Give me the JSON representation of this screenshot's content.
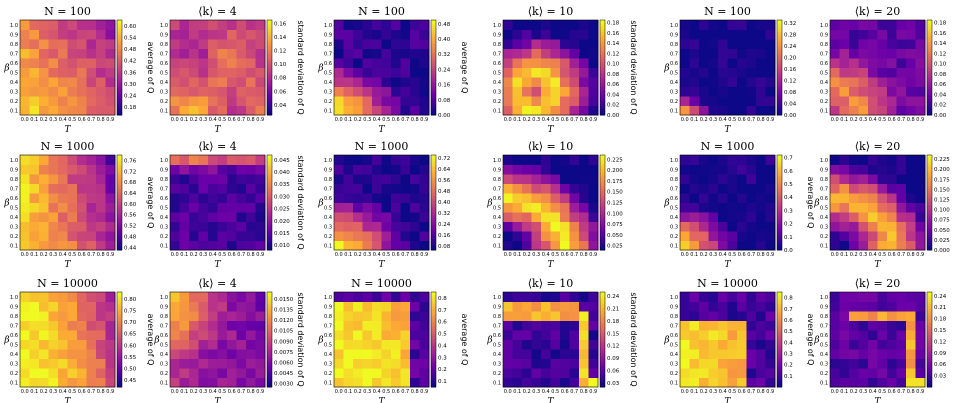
{
  "colors": {
    "colormap": "plasma",
    "colormap_stops": [
      "#0d0887",
      "#6a00a8",
      "#b12a90",
      "#e16462",
      "#fca636",
      "#f0f921"
    ]
  },
  "chart_data": [
    {
      "type": "heatmap",
      "title": "N = 100",
      "xlabel": "T",
      "ylabel": "β",
      "colorbar_label": "average of Q",
      "colorbar_ticks": [
        "0.18",
        "0.24",
        "0.30",
        "0.36",
        "0.42",
        "0.48",
        "0.54",
        "0.60"
      ],
      "clim": [
        0.14,
        0.63
      ],
      "x": [
        "0.0",
        "0.1",
        "0.2",
        "0.3",
        "0.4",
        "0.5",
        "0.6",
        "0.7",
        "0.8",
        "0.9"
      ],
      "y": [
        "0.1",
        "0.2",
        "0.3",
        "0.4",
        "0.5",
        "0.6",
        "0.7",
        "0.8",
        "0.9",
        "1.0"
      ]
    },
    {
      "type": "heatmap",
      "title": "⟨k⟩ = 4",
      "xlabel": "T",
      "ylabel": "",
      "colorbar_label": "standard deviation of Q",
      "colorbar_ticks": [
        "0.04",
        "0.06",
        "0.08",
        "0.10",
        "0.12",
        "0.14",
        "0.16"
      ],
      "clim": [
        0.025,
        0.165
      ],
      "x": [
        "0.0",
        "0.1",
        "0.2",
        "0.3",
        "0.4",
        "0.5",
        "0.6",
        "0.7",
        "0.8",
        "0.9"
      ],
      "y": [
        "0.1",
        "0.2",
        "0.3",
        "0.4",
        "0.5",
        "0.6",
        "0.7",
        "0.8",
        "0.9",
        "1.0"
      ]
    },
    {
      "type": "heatmap",
      "title": "N = 100",
      "xlabel": "T",
      "ylabel": "β",
      "colorbar_label": "average of Q",
      "colorbar_ticks": [
        "0.00",
        "0.08",
        "0.16",
        "0.24",
        "0.32",
        "0.40",
        "0.48"
      ],
      "clim": [
        0.0,
        0.5
      ],
      "x": [
        "0.0",
        "0.1",
        "0.2",
        "0.3",
        "0.4",
        "0.5",
        "0.6",
        "0.7",
        "0.8",
        "0.9"
      ],
      "y": [
        "0.1",
        "0.2",
        "0.3",
        "0.4",
        "0.5",
        "0.6",
        "0.7",
        "0.8",
        "0.9",
        "1.0"
      ]
    },
    {
      "type": "heatmap",
      "title": "⟨k⟩ = 10",
      "xlabel": "T",
      "ylabel": "",
      "colorbar_label": "standard deviation of Q",
      "colorbar_ticks": [
        "0.00",
        "0.02",
        "0.04",
        "0.06",
        "0.08",
        "0.10",
        "0.12",
        "0.14",
        "0.16",
        "0.18"
      ],
      "clim": [
        0.0,
        0.185
      ],
      "x": [
        "0.0",
        "0.1",
        "0.2",
        "0.3",
        "0.4",
        "0.5",
        "0.6",
        "0.7",
        "0.8",
        "0.9"
      ],
      "y": [
        "0.1",
        "0.2",
        "0.3",
        "0.4",
        "0.5",
        "0.6",
        "0.7",
        "0.8",
        "0.9",
        "1.0"
      ]
    },
    {
      "type": "heatmap",
      "title": "N = 100",
      "xlabel": "T",
      "ylabel": "β",
      "colorbar_label": "",
      "colorbar_ticks": [
        "0.00",
        "0.04",
        "0.08",
        "0.12",
        "0.16",
        "0.20",
        "0.24",
        "0.28",
        "0.32"
      ],
      "clim": [
        0.0,
        0.33
      ],
      "x": [
        "0.0",
        "0.1",
        "0.2",
        "0.3",
        "0.4",
        "0.5",
        "0.6",
        "0.7",
        "0.8",
        "0.9"
      ],
      "y": [
        "0.1",
        "0.2",
        "0.3",
        "0.4",
        "0.5",
        "0.6",
        "0.7",
        "0.8",
        "0.9",
        "1.0"
      ]
    },
    {
      "type": "heatmap",
      "title": "⟨k⟩ = 20",
      "xlabel": "",
      "ylabel": "",
      "colorbar_label": "standard deviation of Q",
      "colorbar_ticks": [
        "0.00",
        "0.02",
        "0.04",
        "0.06",
        "0.08",
        "0.10",
        "0.12",
        "0.14",
        "0.16",
        "0.18"
      ],
      "clim": [
        0.0,
        0.185
      ],
      "x": [
        "0.0",
        "0.1",
        "0.2",
        "0.3",
        "0.4",
        "0.5",
        "0.6",
        "0.7",
        "0.8",
        "0.9"
      ],
      "y": [
        "0.1",
        "0.2",
        "0.3",
        "0.4",
        "0.5",
        "0.6",
        "0.7",
        "0.8",
        "0.9",
        "1.0"
      ]
    },
    {
      "type": "heatmap",
      "title": "N = 1000",
      "xlabel": "T",
      "ylabel": "β",
      "colorbar_label": "average of Q",
      "colorbar_ticks": [
        "0.44",
        "0.48",
        "0.52",
        "0.56",
        "0.60",
        "0.64",
        "0.68",
        "0.72",
        "0.76"
      ],
      "clim": [
        0.43,
        0.78
      ],
      "x": [
        "0.0",
        "0.1",
        "0.2",
        "0.3",
        "0.4",
        "0.5",
        "0.6",
        "0.7",
        "0.8",
        "0.9"
      ],
      "y": [
        "0.1",
        "0.2",
        "0.3",
        "0.4",
        "0.5",
        "0.6",
        "0.7",
        "0.8",
        "0.9",
        "1.0"
      ]
    },
    {
      "type": "heatmap",
      "title": "⟨k⟩ = 4",
      "xlabel": "T",
      "ylabel": "",
      "colorbar_label": "standard deviation of Q",
      "colorbar_ticks": [
        "0.010",
        "0.015",
        "0.020",
        "0.025",
        "0.030",
        "0.035",
        "0.040",
        "0.045"
      ],
      "clim": [
        0.008,
        0.047
      ],
      "x": [
        "0.0",
        "0.1",
        "0.2",
        "0.3",
        "0.4",
        "0.5",
        "0.6",
        "0.7",
        "0.8",
        "0.9"
      ],
      "y": [
        "0.1",
        "0.2",
        "0.3",
        "0.4",
        "0.5",
        "0.6",
        "0.7",
        "0.8",
        "0.9",
        "1.0"
      ]
    },
    {
      "type": "heatmap",
      "title": "N = 1000",
      "xlabel": "T",
      "ylabel": "β",
      "colorbar_label": "",
      "colorbar_ticks": [
        "0.08",
        "0.16",
        "0.24",
        "0.32",
        "0.40",
        "0.48",
        "0.56",
        "0.64",
        "0.72"
      ],
      "clim": [
        0.05,
        0.74
      ],
      "x": [
        "0.0",
        "0.1",
        "0.2",
        "0.3",
        "0.4",
        "0.5",
        "0.6",
        "0.7",
        "0.8",
        "0.9"
      ],
      "y": [
        "0.1",
        "0.2",
        "0.3",
        "0.4",
        "0.5",
        "0.6",
        "0.7",
        "0.8",
        "0.9",
        "1.0"
      ]
    },
    {
      "type": "heatmap",
      "title": "⟨k⟩ = 10",
      "xlabel": "T",
      "ylabel": "β",
      "colorbar_label": "",
      "colorbar_ticks": [
        "0.025",
        "0.050",
        "0.075",
        "0.100",
        "0.125",
        "0.150",
        "0.175",
        "0.200",
        "0.225"
      ],
      "clim": [
        0.015,
        0.235
      ],
      "x": [
        "0.0",
        "0.1",
        "0.2",
        "0.3",
        "0.4",
        "0.5",
        "0.6",
        "0.7",
        "0.8",
        "0.9"
      ],
      "y": [
        "0.1",
        "0.2",
        "0.3",
        "0.4",
        "0.5",
        "0.6",
        "0.7",
        "0.8",
        "0.9",
        "1.0"
      ]
    },
    {
      "type": "heatmap",
      "title": "N = 1000",
      "xlabel": "T",
      "ylabel": "β",
      "colorbar_label": "average of Q",
      "colorbar_ticks": [
        "0.0",
        "0.1",
        "0.2",
        "0.3",
        "0.4",
        "0.5",
        "0.6",
        "0.7"
      ],
      "clim": [
        0.0,
        0.72
      ],
      "x": [
        "0.0",
        "0.1",
        "0.2",
        "0.3",
        "0.4",
        "0.5",
        "0.6",
        "0.7",
        "0.8",
        "0.9"
      ],
      "y": [
        "0.1",
        "0.2",
        "0.3",
        "0.4",
        "0.5",
        "0.6",
        "0.7",
        "0.8",
        "0.9",
        "1.0"
      ]
    },
    {
      "type": "heatmap",
      "title": "⟨k⟩ = 20",
      "xlabel": "T",
      "ylabel": "β",
      "colorbar_label": "standard deviation of Q",
      "colorbar_ticks": [
        "0.000",
        "0.025",
        "0.050",
        "0.075",
        "0.100",
        "0.125",
        "0.150",
        "0.175",
        "0.200",
        "0.225"
      ],
      "clim": [
        0.0,
        0.235
      ],
      "x": [
        "0.0",
        "0.1",
        "0.2",
        "0.3",
        "0.4",
        "0.5",
        "0.6",
        "0.7",
        "0.8",
        "0.9"
      ],
      "y": [
        "0.1",
        "0.2",
        "0.3",
        "0.4",
        "0.5",
        "0.6",
        "0.7",
        "0.8",
        "0.9",
        "1.0"
      ]
    },
    {
      "type": "heatmap",
      "title": "N = 10000",
      "xlabel": "T",
      "ylabel": "β",
      "colorbar_label": "average of Q",
      "colorbar_ticks": [
        "0.45",
        "0.50",
        "0.55",
        "0.60",
        "0.65",
        "0.70",
        "0.75",
        "0.80"
      ],
      "clim": [
        0.42,
        0.83
      ],
      "x": [
        "0.0",
        "0.1",
        "0.2",
        "0.3",
        "0.4",
        "0.5",
        "0.6",
        "0.7",
        "0.8",
        "0.9"
      ],
      "y": [
        "0.1",
        "0.2",
        "0.3",
        "0.4",
        "0.5",
        "0.6",
        "0.7",
        "0.8",
        "0.9",
        "1.0"
      ]
    },
    {
      "type": "heatmap",
      "title": "⟨k⟩ = 4",
      "xlabel": "T",
      "ylabel": "β",
      "colorbar_label": "standard deviation of Q",
      "colorbar_ticks": [
        "0.0030",
        "0.0045",
        "0.0060",
        "0.0075",
        "0.0090",
        "0.0105",
        "0.0120",
        "0.0135",
        "0.0150"
      ],
      "clim": [
        0.0025,
        0.016
      ],
      "x": [
        "0.0",
        "0.1",
        "0.2",
        "0.3",
        "0.4",
        "0.5",
        "0.6",
        "0.7",
        "0.8",
        "0.9"
      ],
      "y": [
        "0.1",
        "0.2",
        "0.3",
        "0.4",
        "0.5",
        "0.6",
        "0.7",
        "0.8",
        "0.9",
        "1.0"
      ]
    },
    {
      "type": "heatmap",
      "title": "N = 10000",
      "xlabel": "T",
      "ylabel": "β",
      "colorbar_label": "average of Q",
      "colorbar_ticks": [
        "0.1",
        "0.2",
        "0.3",
        "0.4",
        "0.5",
        "0.6",
        "0.7",
        "0.8"
      ],
      "clim": [
        0.05,
        0.85
      ],
      "x": [
        "0.0",
        "0.1",
        "0.2",
        "0.3",
        "0.4",
        "0.5",
        "0.6",
        "0.7",
        "0.8",
        "0.9"
      ],
      "y": [
        "0.1",
        "0.2",
        "0.3",
        "0.4",
        "0.5",
        "0.6",
        "0.7",
        "0.8",
        "0.9",
        "1.0"
      ]
    },
    {
      "type": "heatmap",
      "title": "⟨k⟩ = 10",
      "xlabel": "T",
      "ylabel": "β",
      "colorbar_label": "standard deviation of Q",
      "colorbar_ticks": [
        "0.03",
        "0.06",
        "0.09",
        "0.12",
        "0.15",
        "0.18",
        "0.21",
        "0.24"
      ],
      "clim": [
        0.02,
        0.25
      ],
      "x": [
        "0.0",
        "0.1",
        "0.2",
        "0.3",
        "0.4",
        "0.5",
        "0.6",
        "0.7",
        "0.8",
        "0.9"
      ],
      "y": [
        "0.1",
        "0.2",
        "0.3",
        "0.4",
        "0.5",
        "0.6",
        "0.7",
        "0.8",
        "0.9",
        "1.0"
      ]
    },
    {
      "type": "heatmap",
      "title": "N = 10000",
      "xlabel": "T",
      "ylabel": "β",
      "colorbar_label": "average of Q",
      "colorbar_ticks": [
        "0.1",
        "0.2",
        "0.3",
        "0.4",
        "0.5",
        "0.6",
        "0.7",
        "0.8"
      ],
      "clim": [
        0.0,
        0.85
      ],
      "x": [
        "0.0",
        "0.1",
        "0.2",
        "0.3",
        "0.4",
        "0.5",
        "0.6",
        "0.7",
        "0.8",
        "0.9"
      ],
      "y": [
        "0.1",
        "0.2",
        "0.3",
        "0.4",
        "0.5",
        "0.6",
        "0.7",
        "0.8",
        "0.9",
        "1.0"
      ]
    },
    {
      "type": "heatmap",
      "title": "⟨k⟩ = 20",
      "xlabel": "T",
      "ylabel": "β",
      "colorbar_label": "standard deviation of Q",
      "colorbar_ticks": [
        "0.03",
        "0.06",
        "0.09",
        "0.12",
        "0.15",
        "0.18",
        "0.21",
        "0.24"
      ],
      "clim": [
        0.0,
        0.25
      ],
      "x": [
        "0.0",
        "0.1",
        "0.2",
        "0.3",
        "0.4",
        "0.5",
        "0.6",
        "0.7",
        "0.8",
        "0.9"
      ],
      "y": [
        "0.1",
        "0.2",
        "0.3",
        "0.4",
        "0.5",
        "0.6",
        "0.7",
        "0.8",
        "0.9",
        "1.0"
      ]
    }
  ]
}
